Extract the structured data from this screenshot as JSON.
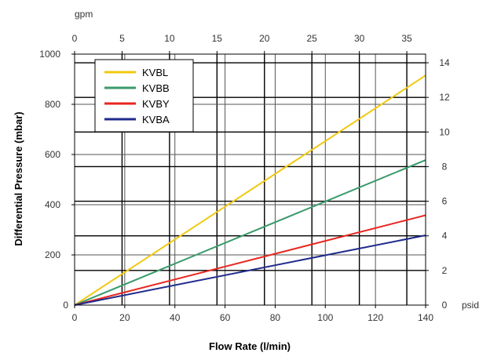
{
  "chart_data": {
    "type": "line",
    "xlabel": "Flow Rate (l/min)",
    "ylabel": "Differential Pressure (mbar)",
    "x_top_unit": "gpm",
    "y_right_unit": "psid",
    "xlim": [
      0,
      140
    ],
    "ylim": [
      0,
      1000
    ],
    "x_ticks": [
      0,
      20,
      40,
      60,
      80,
      100,
      120,
      140
    ],
    "y_ticks": [
      200,
      400,
      600,
      800,
      1000
    ],
    "x_origin_label": "0",
    "x_top_ticks": [
      0,
      5,
      10,
      15,
      20,
      25,
      30,
      35
    ],
    "x_top_lim": [
      0,
      36.98
    ],
    "y_right_ticks": [
      0,
      2,
      4,
      6,
      8,
      10,
      12,
      14
    ],
    "y_right_lim": [
      0,
      14.5
    ],
    "grid": true,
    "legend_position": "top-left",
    "series": [
      {
        "name": "KVBL",
        "color": "#f2c811",
        "x": [
          0,
          140
        ],
        "y": [
          0,
          915
        ]
      },
      {
        "name": "KVBB",
        "color": "#3a9a6c",
        "x": [
          0,
          140
        ],
        "y": [
          0,
          578
        ]
      },
      {
        "name": "KVBY",
        "color": "#e8261f",
        "x": [
          0,
          140
        ],
        "y": [
          0,
          358
        ]
      },
      {
        "name": "KVBA",
        "color": "#1f2a8c",
        "x": [
          0,
          140
        ],
        "y": [
          0,
          278
        ]
      }
    ]
  }
}
